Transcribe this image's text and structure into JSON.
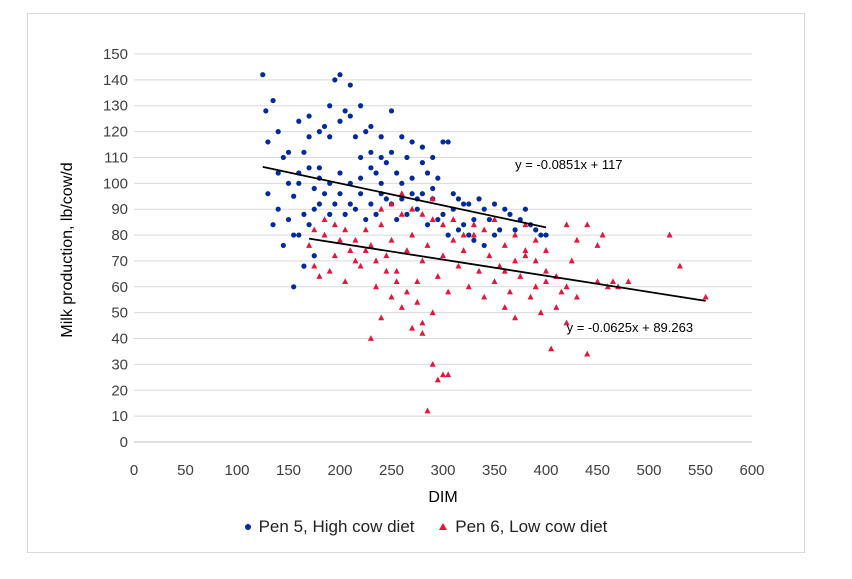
{
  "chart_data": {
    "type": "scatter",
    "xlabel": "DIM",
    "ylabel": "Milk production, lb/cow/d",
    "xlim": [
      0,
      600
    ],
    "ylim": [
      0,
      150
    ],
    "xticks": [
      0,
      50,
      100,
      150,
      200,
      250,
      300,
      350,
      400,
      450,
      500,
      550,
      600
    ],
    "yticks": [
      0,
      10,
      20,
      30,
      40,
      50,
      60,
      70,
      80,
      90,
      100,
      110,
      120,
      130,
      140,
      150
    ],
    "grid": "horizontal",
    "legend_position": "bottom",
    "series": [
      {
        "name": "Pen 5, High cow diet",
        "marker": "circle",
        "color": "#002a9e",
        "points": [
          [
            125,
            142
          ],
          [
            128,
            128
          ],
          [
            130,
            116
          ],
          [
            135,
            132
          ],
          [
            140,
            120
          ],
          [
            145,
            110
          ],
          [
            150,
            100
          ],
          [
            155,
            95
          ],
          [
            160,
            104
          ],
          [
            165,
            112
          ],
          [
            170,
            118
          ],
          [
            175,
            98
          ],
          [
            180,
            106
          ],
          [
            185,
            122
          ],
          [
            190,
            130
          ],
          [
            195,
            140
          ],
          [
            200,
            142
          ],
          [
            205,
            128
          ],
          [
            210,
            138
          ],
          [
            215,
            118
          ],
          [
            220,
            110
          ],
          [
            225,
            120
          ],
          [
            230,
            112
          ],
          [
            235,
            104
          ],
          [
            240,
            96
          ],
          [
            245,
            108
          ],
          [
            250,
            128
          ],
          [
            255,
            104
          ],
          [
            260,
            100
          ],
          [
            265,
            110
          ],
          [
            270,
            96
          ],
          [
            275,
            94
          ],
          [
            280,
            108
          ],
          [
            285,
            104
          ],
          [
            290,
            98
          ],
          [
            295,
            102
          ],
          [
            300,
            116
          ],
          [
            305,
            116
          ],
          [
            310,
            96
          ],
          [
            315,
            94
          ],
          [
            320,
            92
          ],
          [
            325,
            92
          ],
          [
            330,
            86
          ],
          [
            335,
            94
          ],
          [
            340,
            90
          ],
          [
            345,
            86
          ],
          [
            350,
            92
          ],
          [
            355,
            82
          ],
          [
            360,
            90
          ],
          [
            365,
            88
          ],
          [
            370,
            82
          ],
          [
            375,
            86
          ],
          [
            380,
            90
          ],
          [
            385,
            84
          ],
          [
            390,
            82
          ],
          [
            395,
            80
          ],
          [
            400,
            80
          ],
          [
            130,
            96
          ],
          [
            140,
            90
          ],
          [
            150,
            86
          ],
          [
            160,
            80
          ],
          [
            170,
            84
          ],
          [
            180,
            92
          ],
          [
            190,
            88
          ],
          [
            200,
            96
          ],
          [
            210,
            92
          ],
          [
            220,
            96
          ],
          [
            230,
            92
          ],
          [
            240,
            100
          ],
          [
            250,
            92
          ],
          [
            260,
            94
          ],
          [
            270,
            102
          ],
          [
            280,
            96
          ],
          [
            290,
            94
          ],
          [
            300,
            88
          ],
          [
            310,
            90
          ],
          [
            320,
            84
          ],
          [
            330,
            78
          ],
          [
            340,
            76
          ],
          [
            350,
            80
          ],
          [
            160,
            100
          ],
          [
            170,
            106
          ],
          [
            180,
            102
          ],
          [
            190,
            100
          ],
          [
            200,
            104
          ],
          [
            210,
            100
          ],
          [
            220,
            102
          ],
          [
            230,
            106
          ],
          [
            240,
            110
          ],
          [
            250,
            112
          ],
          [
            260,
            118
          ],
          [
            270,
            116
          ],
          [
            280,
            114
          ],
          [
            290,
            110
          ],
          [
            160,
            124
          ],
          [
            170,
            126
          ],
          [
            180,
            120
          ],
          [
            190,
            118
          ],
          [
            200,
            124
          ],
          [
            210,
            126
          ],
          [
            220,
            130
          ],
          [
            230,
            122
          ],
          [
            240,
            118
          ],
          [
            140,
            104
          ],
          [
            150,
            112
          ],
          [
            155,
            60
          ],
          [
            165,
            68
          ],
          [
            175,
            72
          ],
          [
            135,
            84
          ],
          [
            145,
            76
          ],
          [
            155,
            80
          ],
          [
            165,
            88
          ],
          [
            175,
            90
          ],
          [
            185,
            96
          ],
          [
            195,
            92
          ],
          [
            205,
            88
          ],
          [
            215,
            90
          ],
          [
            225,
            86
          ],
          [
            235,
            88
          ],
          [
            245,
            94
          ],
          [
            255,
            86
          ],
          [
            265,
            88
          ],
          [
            275,
            90
          ],
          [
            285,
            84
          ],
          [
            295,
            86
          ],
          [
            305,
            80
          ],
          [
            315,
            82
          ],
          [
            325,
            80
          ]
        ]
      },
      {
        "name": "Pen 6, Low cow diet",
        "marker": "triangle",
        "color": "#e8143c",
        "points": [
          [
            170,
            76
          ],
          [
            175,
            68
          ],
          [
            180,
            64
          ],
          [
            185,
            80
          ],
          [
            190,
            66
          ],
          [
            195,
            72
          ],
          [
            200,
            78
          ],
          [
            205,
            62
          ],
          [
            210,
            74
          ],
          [
            215,
            70
          ],
          [
            220,
            68
          ],
          [
            225,
            82
          ],
          [
            230,
            76
          ],
          [
            235,
            60
          ],
          [
            240,
            84
          ],
          [
            245,
            72
          ],
          [
            250,
            78
          ],
          [
            255,
            66
          ],
          [
            260,
            88
          ],
          [
            265,
            74
          ],
          [
            270,
            80
          ],
          [
            275,
            62
          ],
          [
            280,
            70
          ],
          [
            285,
            76
          ],
          [
            290,
            86
          ],
          [
            295,
            64
          ],
          [
            300,
            72
          ],
          [
            305,
            58
          ],
          [
            310,
            78
          ],
          [
            315,
            68
          ],
          [
            320,
            74
          ],
          [
            325,
            60
          ],
          [
            330,
            80
          ],
          [
            335,
            66
          ],
          [
            340,
            56
          ],
          [
            345,
            72
          ],
          [
            350,
            62
          ],
          [
            355,
            68
          ],
          [
            360,
            52
          ],
          [
            365,
            58
          ],
          [
            370,
            48
          ],
          [
            375,
            64
          ],
          [
            380,
            72
          ],
          [
            385,
            56
          ],
          [
            390,
            60
          ],
          [
            395,
            50
          ],
          [
            400,
            62
          ],
          [
            405,
            36
          ],
          [
            410,
            52
          ],
          [
            415,
            58
          ],
          [
            420,
            46
          ],
          [
            425,
            70
          ],
          [
            430,
            78
          ],
          [
            440,
            34
          ],
          [
            450,
            62
          ],
          [
            455,
            80
          ],
          [
            460,
            60
          ],
          [
            465,
            62
          ],
          [
            520,
            80
          ],
          [
            530,
            68
          ],
          [
            555,
            56
          ],
          [
            230,
            40
          ],
          [
            240,
            48
          ],
          [
            250,
            56
          ],
          [
            260,
            52
          ],
          [
            270,
            44
          ],
          [
            280,
            42
          ],
          [
            290,
            30
          ],
          [
            295,
            24
          ],
          [
            300,
            26
          ],
          [
            305,
            26
          ],
          [
            285,
            12
          ],
          [
            280,
            46
          ],
          [
            290,
            50
          ],
          [
            275,
            54
          ],
          [
            265,
            58
          ],
          [
            255,
            62
          ],
          [
            245,
            66
          ],
          [
            235,
            70
          ],
          [
            225,
            74
          ],
          [
            215,
            78
          ],
          [
            205,
            82
          ],
          [
            195,
            84
          ],
          [
            185,
            86
          ],
          [
            175,
            82
          ],
          [
            240,
            90
          ],
          [
            250,
            92
          ],
          [
            260,
            96
          ],
          [
            270,
            90
          ],
          [
            280,
            88
          ],
          [
            290,
            94
          ],
          [
            300,
            84
          ],
          [
            310,
            86
          ],
          [
            320,
            80
          ],
          [
            330,
            84
          ],
          [
            340,
            82
          ],
          [
            350,
            86
          ],
          [
            360,
            76
          ],
          [
            370,
            80
          ],
          [
            380,
            74
          ],
          [
            390,
            70
          ],
          [
            400,
            66
          ],
          [
            410,
            64
          ],
          [
            420,
            60
          ],
          [
            430,
            56
          ],
          [
            360,
            66
          ],
          [
            370,
            70
          ],
          [
            380,
            84
          ],
          [
            390,
            78
          ],
          [
            400,
            74
          ],
          [
            420,
            84
          ],
          [
            470,
            60
          ],
          [
            440,
            84
          ],
          [
            450,
            76
          ],
          [
            480,
            62
          ]
        ]
      }
    ],
    "trendlines": [
      {
        "series": "Pen 5, High cow diet",
        "equation": "y = -0.0851x + 117",
        "slope": -0.0851,
        "intercept": 117,
        "x_range": [
          125,
          400
        ]
      },
      {
        "series": "Pen 6, Low cow diet",
        "equation": "y = -0.0625x + 89.263",
        "slope": -0.0625,
        "intercept": 89.263,
        "x_range": [
          170,
          555
        ]
      }
    ]
  }
}
